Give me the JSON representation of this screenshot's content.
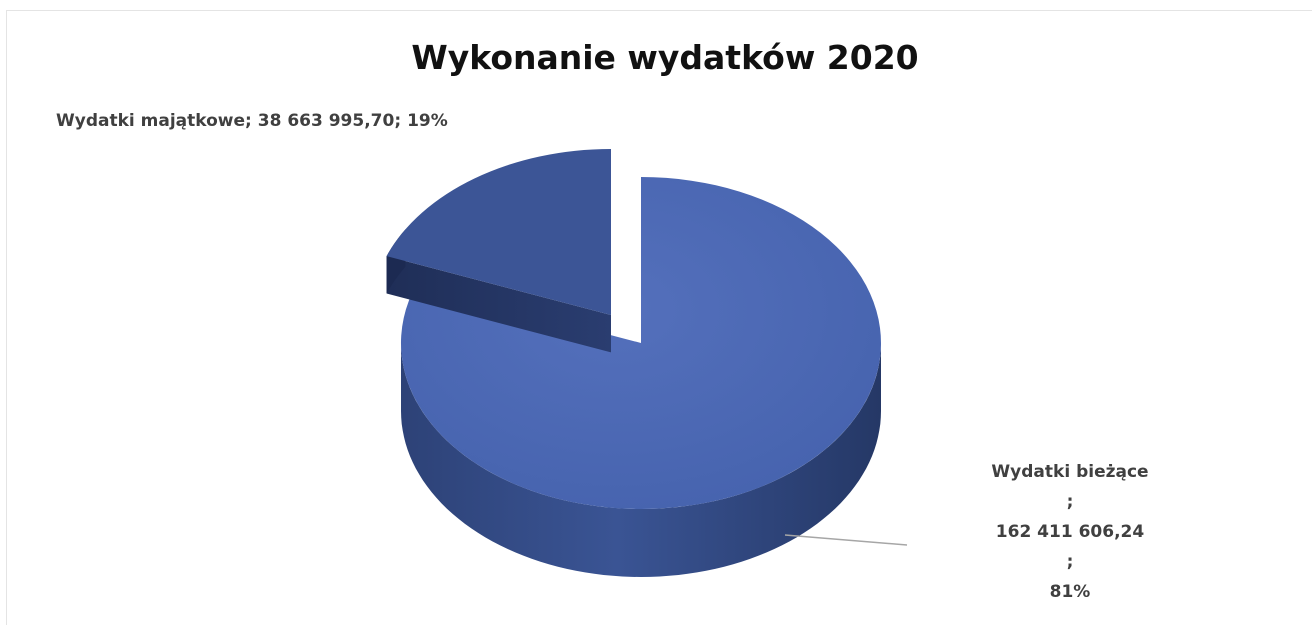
{
  "chart_data": {
    "type": "pie",
    "title": "Wykonanie wydatków 2020",
    "slices": [
      {
        "category": "Wydatki bieżące",
        "value": 162411606.24,
        "value_label": "162 411 606,24",
        "percent_label": "81%",
        "percent": 81,
        "color": "#4a67b3"
      },
      {
        "category": "Wydatki majątkowe",
        "value": 38663995.7,
        "value_label": "38 663 995,70",
        "percent_label": "19%",
        "percent": 19,
        "color": "#3c5596",
        "exploded": true
      }
    ],
    "style": "3d-pie",
    "legend": "none"
  }
}
